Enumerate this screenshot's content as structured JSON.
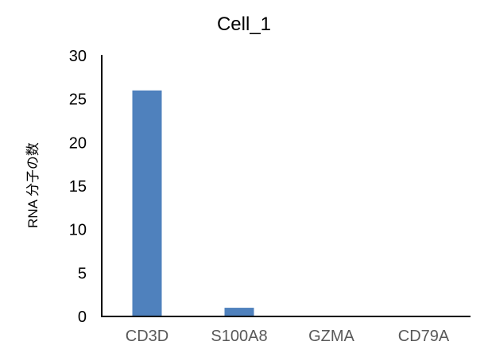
{
  "chart_data": {
    "type": "bar",
    "title": "Cell_1",
    "xlabel": "",
    "ylabel": "RNA 分子の数",
    "categories": [
      "CD3D",
      "S100A8",
      "GZMA",
      "CD79A"
    ],
    "values": [
      26,
      1,
      0,
      0
    ],
    "ylim": [
      0,
      30
    ],
    "yticks": [
      0,
      5,
      10,
      15,
      20,
      25,
      30
    ],
    "grid": false,
    "legend": "none",
    "bar_color": "#4f81bd"
  }
}
